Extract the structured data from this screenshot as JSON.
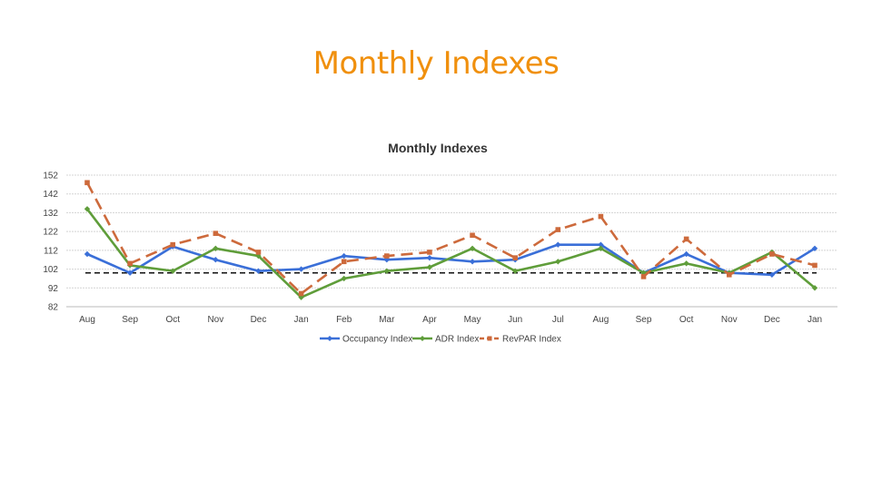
{
  "slide": {
    "title": "Monthly Indexes"
  },
  "chart_data": {
    "type": "line",
    "title": "Monthly Indexes",
    "xlabel": "",
    "ylabel": "",
    "categories": [
      "Aug",
      "Sep",
      "Oct",
      "Nov",
      "Dec",
      "Jan",
      "Feb",
      "Mar",
      "Apr",
      "May",
      "Jun",
      "Jul",
      "Aug",
      "Sep",
      "Oct",
      "Nov",
      "Dec",
      "Jan"
    ],
    "yticks": [
      152,
      142,
      132,
      122,
      112,
      102,
      92,
      82
    ],
    "ylim": [
      82,
      152
    ],
    "grid": true,
    "reference_line": 100,
    "legend_position": "bottom",
    "series": [
      {
        "name": "Occupancy Index",
        "color": "#3a6fd8",
        "style": "solid",
        "marker": "diamond",
        "values": [
          110,
          100,
          114,
          107,
          101,
          102,
          109,
          107,
          108,
          106,
          107,
          115,
          115,
          100,
          110,
          100,
          99,
          113
        ]
      },
      {
        "name": "ADR Index",
        "color": "#5f9d3a",
        "style": "solid",
        "marker": "diamond",
        "values": [
          134,
          104,
          101,
          113,
          109,
          87,
          97,
          101,
          103,
          113,
          101,
          106,
          113,
          100,
          105,
          100,
          111,
          92
        ]
      },
      {
        "name": "RevPAR Index",
        "color": "#cd6a3c",
        "style": "dashed",
        "marker": "square",
        "values": [
          148,
          105,
          115,
          121,
          111,
          89,
          106,
          109,
          111,
          120,
          108,
          123,
          130,
          98,
          118,
          99,
          110,
          104
        ]
      }
    ]
  }
}
